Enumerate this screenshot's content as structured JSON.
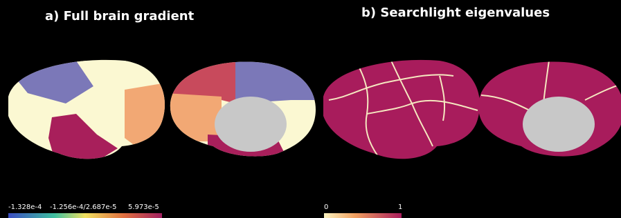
{
  "panels": [
    {
      "title": "a) Full brain gradient",
      "colorbar": {
        "labels": [
          "-1.328e-4",
          "-1.256e-4/2.687e-5",
          "5.973e-5"
        ]
      }
    },
    {
      "title": "b) Searchlight eigenvalues",
      "colorbar": {
        "labels": [
          "0",
          "1"
        ]
      }
    }
  ]
}
